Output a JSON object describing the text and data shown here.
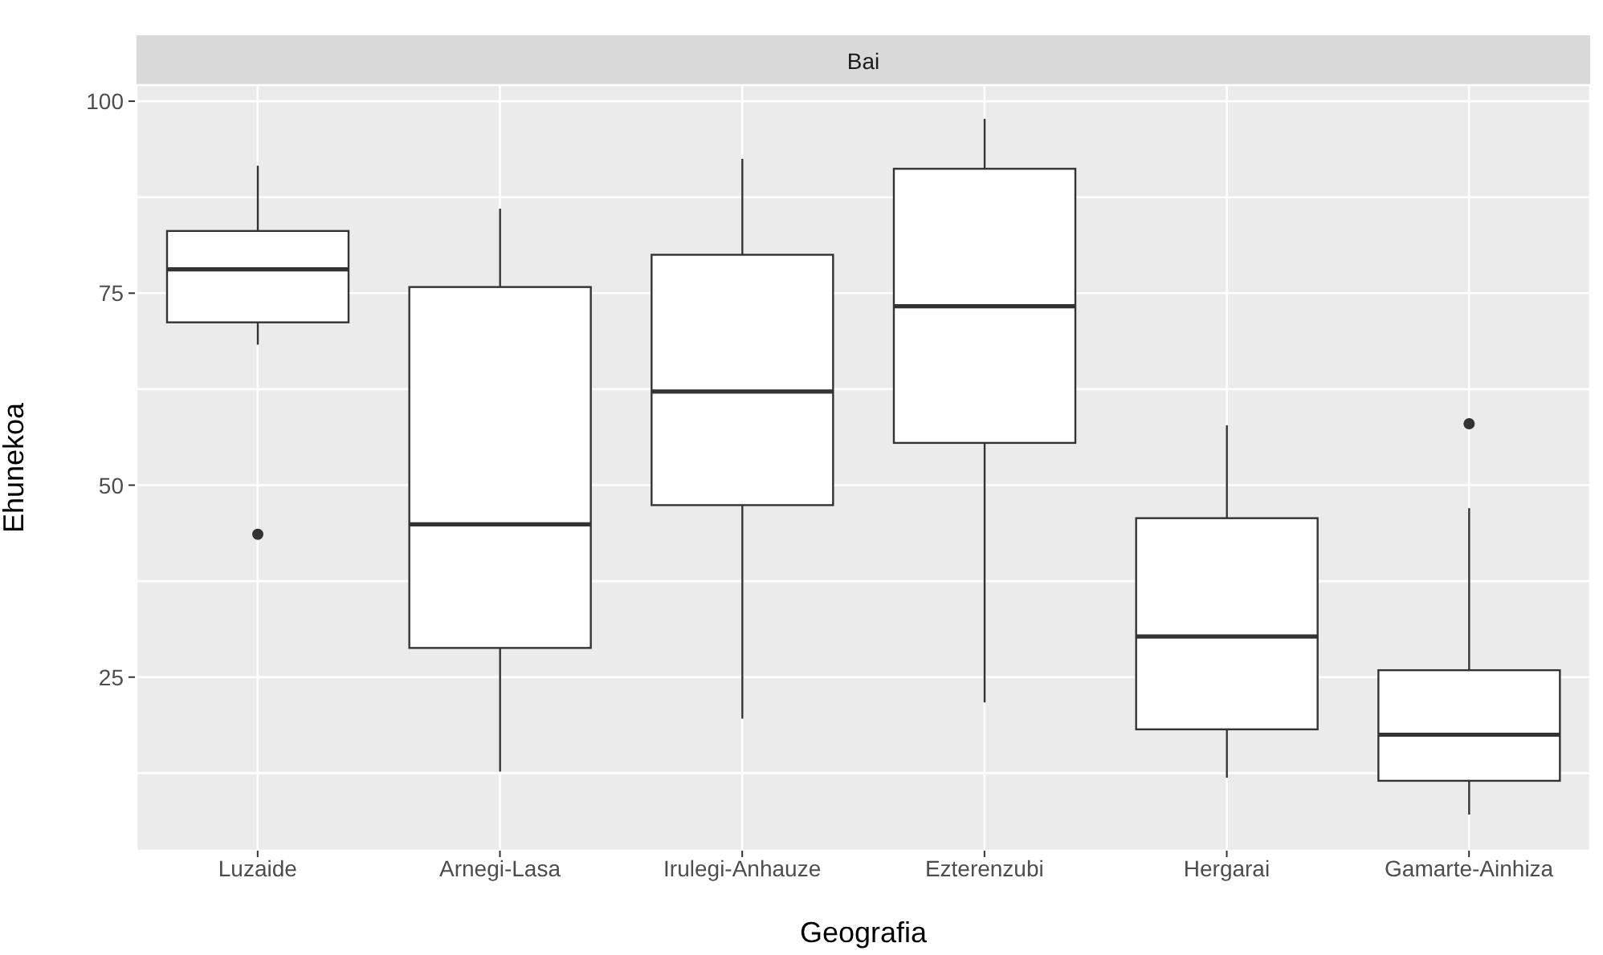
{
  "chart_data": {
    "type": "box",
    "title": "Bai",
    "xlabel": "Geografia",
    "ylabel": "Ehunekoa",
    "categories": [
      "Luzaide",
      "Arnegi-Lasa",
      "Irulegi-Anhauze",
      "Ezterenzubi",
      "Hergarai",
      "Gamarte-Ainhiza"
    ],
    "boxes": [
      {
        "low": 68.3,
        "q1": 71.2,
        "median": 78.1,
        "q3": 83.1,
        "high": 91.6,
        "outliers": [
          43.6
        ]
      },
      {
        "low": 12.7,
        "q1": 28.8,
        "median": 44.9,
        "q3": 75.8,
        "high": 86
      },
      {
        "low": 19.6,
        "q1": 47.4,
        "median": 62.2,
        "q3": 80,
        "high": 92.5
      },
      {
        "low": 21.7,
        "q1": 55.5,
        "median": 73.3,
        "q3": 91.2,
        "high": 97.7
      },
      {
        "low": 11.9,
        "q1": 18.2,
        "median": 30.3,
        "q3": 45.7,
        "high": 57.8
      },
      {
        "low": 7.1,
        "q1": 11.5,
        "median": 17.5,
        "q3": 25.9,
        "high": 47,
        "outliers": [
          58
        ]
      }
    ],
    "ylim": [
      2.4,
      102.1
    ],
    "yticks": [
      {
        "value": 12.5,
        "label": null
      },
      25,
      {
        "value": 37.5,
        "label": null
      },
      50,
      {
        "value": 62.5,
        "label": null
      },
      75,
      {
        "value": 87.5,
        "label": null
      },
      100
    ],
    "grid": true
  }
}
